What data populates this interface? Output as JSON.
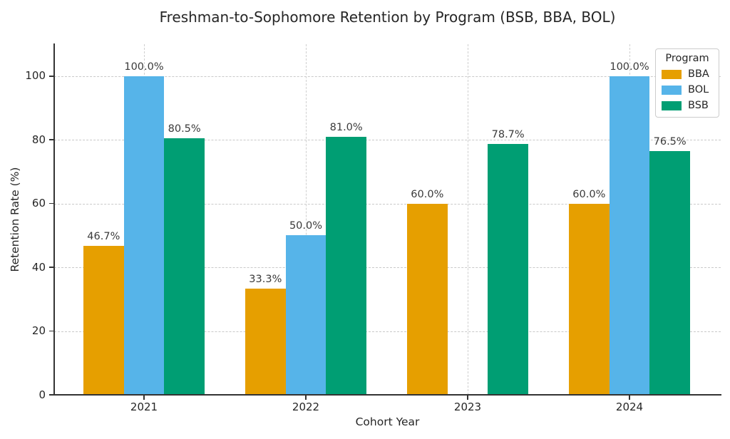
{
  "colors": {
    "background": "#ffffff",
    "text": "#262626",
    "bar_label_text": "#3a3a3a",
    "grid": "#c9c9c9",
    "spine": "#333333",
    "legend_border": "#cccccc"
  },
  "chart_data": {
    "type": "bar",
    "title": "Freshman-to-Sophomore Retention by Program (BSB, BBA, BOL)",
    "xlabel": "Cohort Year",
    "ylabel": "Retention Rate (%)",
    "categories": [
      "2021",
      "2022",
      "2023",
      "2024"
    ],
    "series": [
      {
        "name": "BBA",
        "color": "#E69F00",
        "values": [
          46.7,
          33.3,
          60.0,
          60.0
        ],
        "labels": [
          "46.7%",
          "33.3%",
          "60.0%",
          "60.0%"
        ]
      },
      {
        "name": "BOL",
        "color": "#56B4E9",
        "values": [
          100.0,
          50.0,
          null,
          100.0
        ],
        "labels": [
          "100.0%",
          "50.0%",
          null,
          "100.0%"
        ]
      },
      {
        "name": "BSB",
        "color": "#009E73",
        "values": [
          80.5,
          81.0,
          78.7,
          76.5
        ],
        "labels": [
          "80.5%",
          "81.0%",
          "78.7%",
          "76.5%"
        ]
      }
    ],
    "y_ticks": [
      0,
      20,
      40,
      60,
      80,
      100
    ],
    "ylim": [
      0,
      110
    ],
    "grid": true,
    "legend_title": "Program",
    "legend_position": "upper right"
  }
}
